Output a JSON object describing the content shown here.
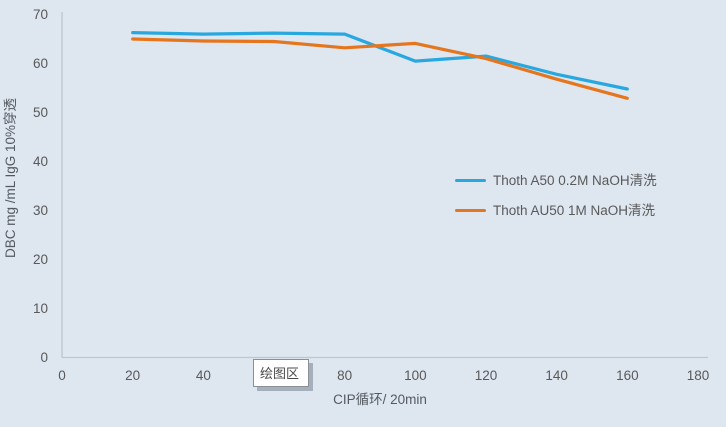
{
  "page": {
    "background": "#dee6f0"
  },
  "chart_data": {
    "type": "line",
    "title": "",
    "x": [
      20,
      40,
      60,
      80,
      100,
      120,
      140,
      160
    ],
    "series": [
      {
        "name": "Thoth A50 0.2M NaOH清洗",
        "color": "#29a8e0",
        "values": [
          66.3,
          66.0,
          66.2,
          66.0,
          60.5,
          61.5,
          57.8,
          54.8
        ]
      },
      {
        "name": "Thoth AU50 1M NaOH清洗",
        "color": "#e5761e",
        "values": [
          65.0,
          64.6,
          64.5,
          63.2,
          64.1,
          61.0,
          56.8,
          52.9
        ]
      }
    ],
    "xlabel": "CIP循环/ 20min",
    "ylabel": "DBC mg /mL IgG 10%穿透",
    "xlim": [
      0,
      180
    ],
    "ylim": [
      0,
      70
    ],
    "x_ticks": [
      0,
      20,
      40,
      60,
      80,
      100,
      120,
      140,
      160,
      180
    ],
    "y_ticks": [
      0,
      10,
      20,
      30,
      40,
      50,
      60,
      70
    ],
    "grid": false,
    "legend_position": "center-right"
  },
  "tooltip": {
    "label": "绘图区"
  },
  "colors": {
    "axis_line": "#c0c4cb",
    "tick_text": "#595959",
    "tooltip_border": "#8a8f98",
    "background": "#dee6f0"
  }
}
